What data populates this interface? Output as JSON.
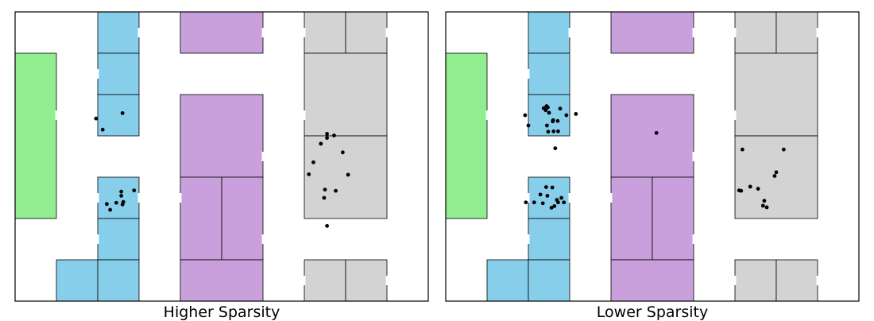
{
  "colors": {
    "green": "#90ee90",
    "blue": "#87ceeb",
    "purple": "#c9a0dc",
    "gray": "#d3d3d3",
    "outline": "#000000",
    "point": "#000000"
  },
  "rooms": [
    {
      "c": "blue",
      "x": 2,
      "y": 0,
      "w": 1,
      "h": 1
    },
    {
      "c": "blue",
      "x": 2,
      "y": 1,
      "w": 1,
      "h": 1
    },
    {
      "c": "blue",
      "x": 2,
      "y": 2,
      "w": 1,
      "h": 1
    },
    {
      "c": "blue",
      "x": 2,
      "y": 4,
      "w": 1,
      "h": 1
    },
    {
      "c": "blue",
      "x": 2,
      "y": 5,
      "w": 1,
      "h": 1
    },
    {
      "c": "blue",
      "x": 1,
      "y": 6,
      "w": 1,
      "h": 1
    },
    {
      "c": "blue",
      "x": 2,
      "y": 6,
      "w": 1,
      "h": 1
    },
    {
      "c": "green",
      "x": 0,
      "y": 1,
      "w": 1,
      "h": 4
    },
    {
      "c": "purple",
      "x": 4,
      "y": 0,
      "w": 2,
      "h": 1
    },
    {
      "c": "purple",
      "x": 4,
      "y": 2,
      "w": 2,
      "h": 2
    },
    {
      "c": "purple",
      "x": 4,
      "y": 4,
      "w": 1,
      "h": 2
    },
    {
      "c": "purple",
      "x": 5,
      "y": 4,
      "w": 1,
      "h": 2
    },
    {
      "c": "purple",
      "x": 4,
      "y": 6,
      "w": 2,
      "h": 1
    },
    {
      "c": "gray",
      "x": 7,
      "y": 0,
      "w": 1,
      "h": 1
    },
    {
      "c": "gray",
      "x": 8,
      "y": 0,
      "w": 1,
      "h": 1
    },
    {
      "c": "gray",
      "x": 7,
      "y": 1,
      "w": 2,
      "h": 2
    },
    {
      "c": "gray",
      "x": 7,
      "y": 3,
      "w": 2,
      "h": 2
    },
    {
      "c": "gray",
      "x": 7,
      "y": 6,
      "w": 1,
      "h": 1
    },
    {
      "c": "gray",
      "x": 8,
      "y": 6,
      "w": 1,
      "h": 1
    }
  ],
  "panels": [
    {
      "title": "Higher Sparsity",
      "points": [
        [
          1.96,
          2.58
        ],
        [
          2.12,
          2.85
        ],
        [
          2.6,
          2.45
        ],
        [
          2.57,
          4.35
        ],
        [
          2.57,
          4.45
        ],
        [
          2.88,
          4.32
        ],
        [
          2.22,
          4.65
        ],
        [
          2.3,
          4.79
        ],
        [
          2.62,
          4.6
        ],
        [
          2.6,
          4.66
        ],
        [
          2.45,
          4.62
        ],
        [
          7.55,
          2.95
        ],
        [
          7.4,
          3.19
        ],
        [
          7.72,
          2.99
        ],
        [
          7.55,
          3.05
        ],
        [
          7.93,
          3.4
        ],
        [
          7.22,
          3.64
        ],
        [
          7.11,
          3.93
        ],
        [
          8.06,
          3.94
        ],
        [
          7.5,
          4.3
        ],
        [
          7.76,
          4.33
        ],
        [
          7.48,
          4.5
        ],
        [
          7.55,
          5.18
        ]
      ]
    },
    {
      "title": "Lower Sparsity",
      "points": [
        [
          2.37,
          2.33
        ],
        [
          2.44,
          2.28
        ],
        [
          2.42,
          2.38
        ],
        [
          2.47,
          2.31
        ],
        [
          2.77,
          2.34
        ],
        [
          2.92,
          2.5
        ],
        [
          2.5,
          2.44
        ],
        [
          1.92,
          2.5
        ],
        [
          2.71,
          2.64
        ],
        [
          2.59,
          2.65
        ],
        [
          2.6,
          2.62
        ],
        [
          2.45,
          2.75
        ],
        [
          2.0,
          2.75
        ],
        [
          2.48,
          2.9
        ],
        [
          2.61,
          2.89
        ],
        [
          2.72,
          2.89
        ],
        [
          3.15,
          2.47
        ],
        [
          2.65,
          3.3
        ],
        [
          2.43,
          4.24
        ],
        [
          2.58,
          4.25
        ],
        [
          2.29,
          4.42
        ],
        [
          2.46,
          4.45
        ],
        [
          2.8,
          4.5
        ],
        [
          2.69,
          4.55
        ],
        [
          2.86,
          4.61
        ],
        [
          2.72,
          4.61
        ],
        [
          1.94,
          4.61
        ],
        [
          2.14,
          4.61
        ],
        [
          2.35,
          4.63
        ],
        [
          2.63,
          4.7
        ],
        [
          2.56,
          4.74
        ],
        [
          5.1,
          2.93
        ],
        [
          7.18,
          3.33
        ],
        [
          8.18,
          3.33
        ],
        [
          8.0,
          3.88
        ],
        [
          7.96,
          3.97
        ],
        [
          7.37,
          4.23
        ],
        [
          7.56,
          4.28
        ],
        [
          7.1,
          4.32
        ],
        [
          7.15,
          4.33
        ],
        [
          7.71,
          4.57
        ],
        [
          7.68,
          4.69
        ],
        [
          7.77,
          4.73
        ]
      ]
    }
  ]
}
